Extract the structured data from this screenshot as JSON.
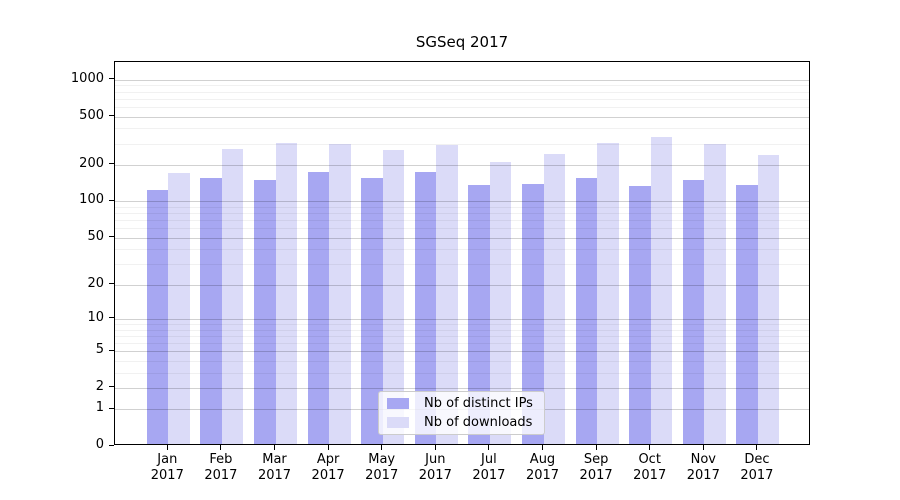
{
  "chart_data": {
    "type": "bar",
    "title": "SGSeq 2017",
    "categories": [
      "Jan",
      "Feb",
      "Mar",
      "Apr",
      "May",
      "Jun",
      "Jul",
      "Aug",
      "Sep",
      "Oct",
      "Nov",
      "Dec"
    ],
    "year_label": "2017",
    "series": [
      {
        "name": "Nb of distinct IPs",
        "values": [
          119,
          149,
          144,
          170,
          151,
          170,
          131,
          135,
          151,
          129,
          144,
          131
        ]
      },
      {
        "name": "Nb of downloads",
        "values": [
          164,
          262,
          293,
          287,
          258,
          283,
          203,
          237,
          290,
          329,
          285,
          232
        ]
      }
    ],
    "y_scale": "log10(1+x)",
    "y_ticks": [
      0,
      1,
      2,
      5,
      10,
      20,
      50,
      100,
      200,
      500,
      1000
    ],
    "y_minor_ticks": [
      3,
      4,
      6,
      7,
      8,
      9,
      30,
      40,
      60,
      70,
      80,
      90,
      300,
      400,
      600,
      700,
      800,
      900
    ],
    "ylim_top": 1400,
    "xlabel": "",
    "ylabel": "",
    "grid": true,
    "legend_position": "bottom-center"
  },
  "colors": {
    "distinct_ips": "#a7a7f2",
    "downloads": "#dbdbf8",
    "grid_major": "rgba(0,0,0,0.18)",
    "grid_minor": "rgba(0,0,0,0.055)",
    "axis": "#000000",
    "legend_border": "#cccccc",
    "legend_bg": "rgba(255,255,255,0.8)"
  }
}
